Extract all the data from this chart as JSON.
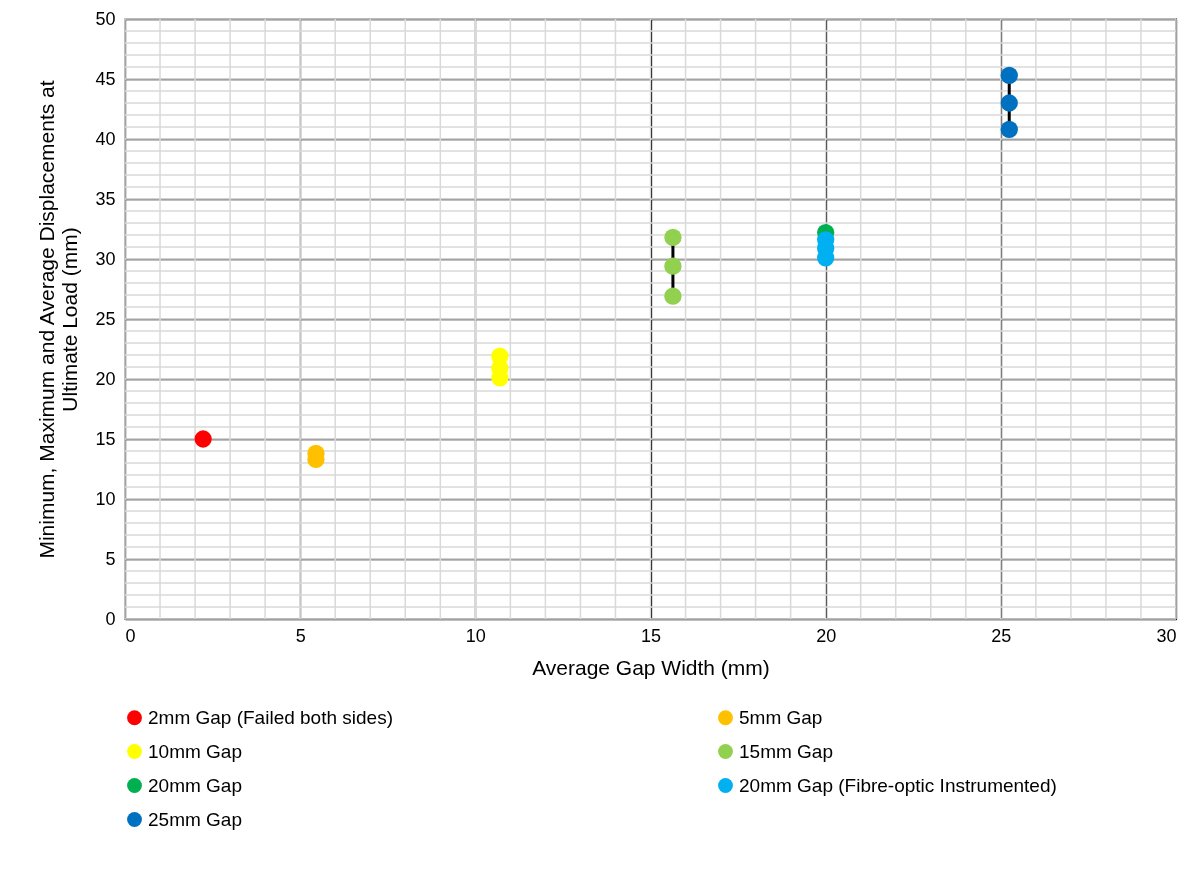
{
  "chart_data": {
    "type": "line",
    "xlabel": "Average Gap Width (mm)",
    "ylabel": "Minimum, Maximum and Average Displacements at Ultimate Load (mm)",
    "xlim": [
      0,
      30
    ],
    "xticks": [
      0,
      5,
      10,
      15,
      20,
      25,
      30
    ],
    "ylim": [
      0,
      50
    ],
    "yticks": [
      0,
      5,
      10,
      15,
      20,
      25,
      30,
      35,
      40,
      45,
      50
    ],
    "grid": true,
    "legend": "bottom",
    "marker": "circle",
    "line_style": "solid",
    "series": [
      {
        "name": "2mm Gap (Failed both sides)",
        "color": "#ff0000",
        "x": [
          2.23
        ],
        "values": [
          15.0
        ]
      },
      {
        "name": "5mm Gap",
        "type": "scatter",
        "color": "#ffc000",
        "x": [
          5.45,
          5.45
        ],
        "values": [
          13.8,
          13.3
        ]
      },
      {
        "name": "10mm Gap",
        "type": "scatter",
        "color": "#ffff00",
        "x": [
          10.7,
          10.7,
          10.7
        ],
        "values": [
          21.9,
          20.9,
          20.1
        ]
      },
      {
        "name": "15mm Gap",
        "color": "#92d050",
        "x": [
          15.64,
          15.64,
          15.64
        ],
        "values": [
          31.8,
          29.4,
          26.9
        ]
      },
      {
        "name": "20mm Gap",
        "color": "#00b050",
        "x": [
          20.0
        ],
        "values": [
          32.2
        ]
      },
      {
        "name": "20mm Gap (Fibre-optic Instrumented)",
        "type": "scatter",
        "color": "#00b0f0",
        "x": [
          20.0,
          20.0,
          20.0
        ],
        "values": [
          31.6,
          30.9,
          30.1
        ]
      },
      {
        "name": "25mm Gap",
        "color": "#0070c0",
        "x": [
          25.24,
          25.24,
          25.24
        ],
        "values": [
          45.3,
          43.0,
          40.8
        ]
      }
    ]
  }
}
